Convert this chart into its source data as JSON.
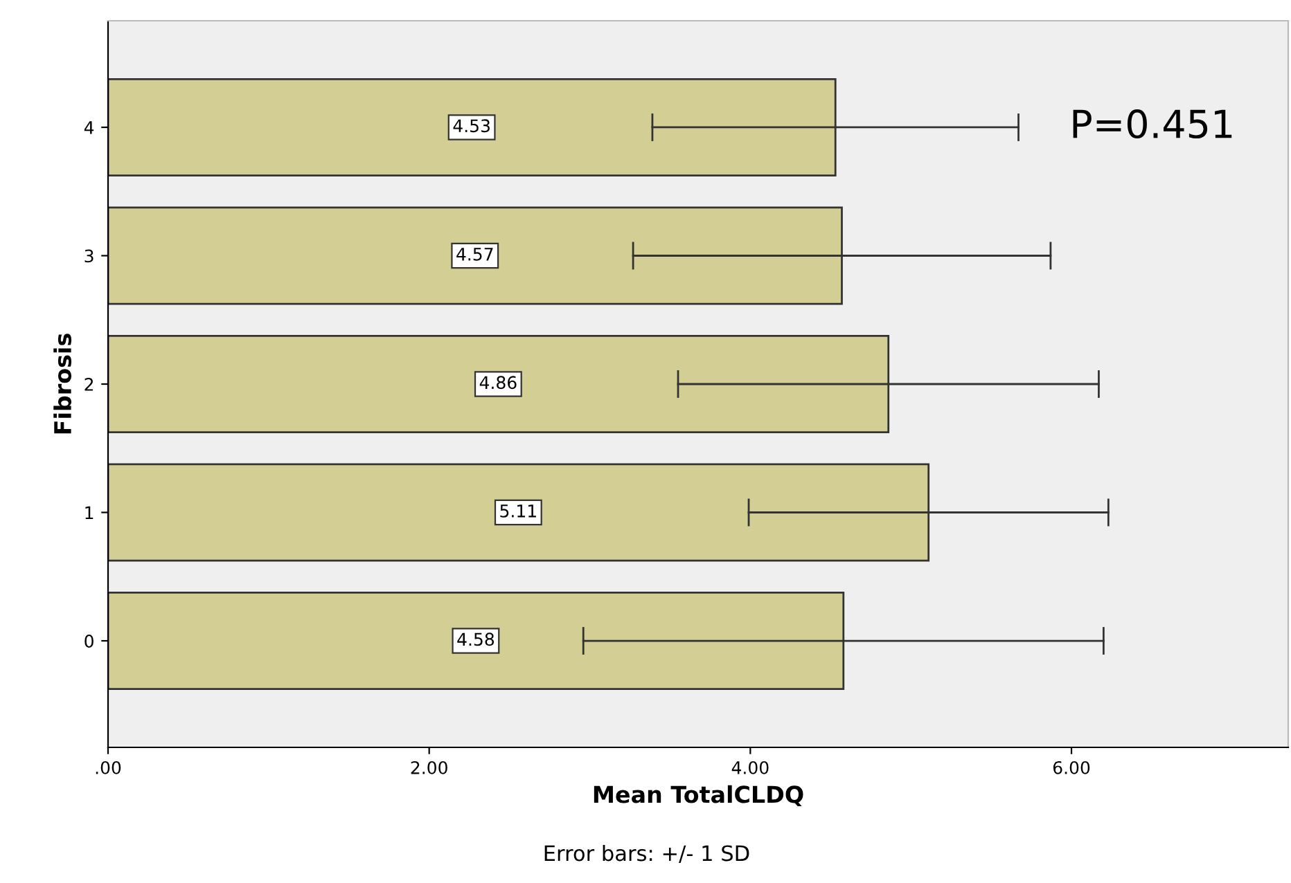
{
  "chart_data": {
    "type": "bar",
    "orientation": "horizontal",
    "ylabel": "Fibrosis",
    "xlabel": "Mean TotalCLDQ",
    "categories": [
      "4",
      "3",
      "2",
      "1",
      "0"
    ],
    "values": [
      4.53,
      4.57,
      4.86,
      5.11,
      4.58
    ],
    "errors": [
      1.14,
      1.3,
      1.31,
      1.12,
      1.62
    ],
    "color": "#d3cf94",
    "data_labels": true,
    "xlim": [
      0,
      7.35
    ],
    "xticks": [
      {
        "value": 0,
        "label": ".00"
      },
      {
        "value": 2,
        "label": "2.00"
      },
      {
        "value": 4,
        "label": "4.00"
      },
      {
        "value": 6,
        "label": "6.00"
      }
    ],
    "annotations": [
      "P=0.451",
      "Error bars: +/- 1 SD"
    ]
  }
}
